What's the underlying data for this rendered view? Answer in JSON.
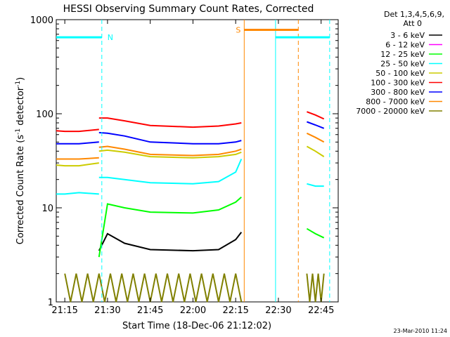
{
  "chart_data": {
    "type": "line",
    "title": "HESSI Observing Summary Count Rates, Corrected",
    "xlabel": "Start Time (18-Dec-06 21:12:02)",
    "ylabel_main": "Corrected Count Rate (s",
    "ylabel_exp1": "-1",
    "ylabel_mid": " detector",
    "ylabel_exp2": "-1",
    "ylabel_end": ")",
    "ylog": true,
    "xlim": [
      "21:12",
      "22:51"
    ],
    "ylim": [
      1,
      1000
    ],
    "x_ticks": [
      "21:15",
      "21:30",
      "21:45",
      "22:00",
      "22:15",
      "22:30",
      "22:45"
    ],
    "y_ticks": [
      {
        "value": 1,
        "label": "1"
      },
      {
        "value": 10,
        "label": "10"
      },
      {
        "value": 100,
        "label": "100"
      },
      {
        "value": 1000,
        "label": "1000"
      }
    ],
    "legend_header": [
      "Det 1,3,4,5,6,9,",
      "Att 0"
    ],
    "legend_placement": "right",
    "series": [
      {
        "name": "3 - 6 keV",
        "color": "#000000",
        "segments": [
          {
            "x": [
              "21:27",
              "21:30",
              "21:36",
              "21:45",
              "22:00",
              "22:09",
              "22:15",
              "22:17"
            ],
            "y": [
              3.5,
              5.3,
              4.2,
              3.6,
              3.5,
              3.6,
              4.6,
              5.5
            ]
          }
        ]
      },
      {
        "name": "6 - 12 keV",
        "color": "#ff00ff",
        "segments": [
          {
            "x": [
              "21:27",
              "21:27"
            ],
            "y": [
              1,
              1
            ]
          }
        ]
      },
      {
        "name": "12 - 25 keV",
        "color": "#00ff00",
        "segments": [
          {
            "x": [
              "21:27",
              "21:30",
              "21:36",
              "21:45",
              "22:00",
              "22:09",
              "22:15",
              "22:17"
            ],
            "y": [
              3.0,
              11.0,
              10.0,
              9.0,
              8.8,
              9.5,
              11.5,
              13.0
            ]
          },
          {
            "x": [
              "22:40",
              "22:43",
              "22:46"
            ],
            "y": [
              6.0,
              5.3,
              4.8
            ]
          }
        ]
      },
      {
        "name": "25 - 50 keV",
        "color": "#00ffff",
        "segments": [
          {
            "x": [
              "21:12",
              "21:15",
              "21:20",
              "21:27"
            ],
            "y": [
              14.0,
              14.0,
              14.5,
              14.0
            ]
          },
          {
            "x": [
              "21:27",
              "21:30",
              "21:36",
              "21:45",
              "22:00",
              "22:09",
              "22:15",
              "22:17"
            ],
            "y": [
              21.0,
              21.0,
              20.0,
              18.5,
              18.0,
              19.0,
              24.0,
              33.0
            ]
          },
          {
            "x": [
              "22:40",
              "22:43",
              "22:46"
            ],
            "y": [
              18.0,
              17.0,
              17.0
            ]
          }
        ]
      },
      {
        "name": "50 - 100 keV",
        "color": "#cccc00",
        "segments": [
          {
            "x": [
              "21:12",
              "21:15",
              "21:20",
              "21:27"
            ],
            "y": [
              28.5,
              28.0,
              28.0,
              30.0
            ]
          },
          {
            "x": [
              "21:27",
              "21:30",
              "21:36",
              "21:45",
              "22:00",
              "22:09",
              "22:15",
              "22:17"
            ],
            "y": [
              40.0,
              41.0,
              39.0,
              35.0,
              34.0,
              35.0,
              37.0,
              39.0
            ]
          },
          {
            "x": [
              "22:40",
              "22:43",
              "22:46"
            ],
            "y": [
              45.0,
              40.0,
              35.0
            ]
          }
        ]
      },
      {
        "name": "100 - 300 keV",
        "color": "#ff0000",
        "segments": [
          {
            "x": [
              "21:12",
              "21:15",
              "21:20",
              "21:27"
            ],
            "y": [
              66.0,
              65.0,
              65.0,
              68.0
            ]
          },
          {
            "x": [
              "21:27",
              "21:30",
              "21:36",
              "21:45",
              "22:00",
              "22:09",
              "22:15",
              "22:17"
            ],
            "y": [
              90.0,
              90.0,
              84.0,
              75.0,
              72.0,
              74.0,
              78.0,
              80.0
            ]
          },
          {
            "x": [
              "22:40",
              "22:43",
              "22:46"
            ],
            "y": [
              105.0,
              97.0,
              88.0
            ]
          }
        ]
      },
      {
        "name": "300 - 800 keV",
        "color": "#0000ff",
        "segments": [
          {
            "x": [
              "21:12",
              "21:15",
              "21:20",
              "21:27"
            ],
            "y": [
              48.0,
              48.0,
              48.0,
              50.0
            ]
          },
          {
            "x": [
              "21:27",
              "21:30",
              "21:36",
              "21:45",
              "22:00",
              "22:09",
              "22:15",
              "22:17"
            ],
            "y": [
              63.0,
              62.0,
              58.0,
              50.0,
              48.0,
              48.0,
              50.0,
              52.0
            ]
          },
          {
            "x": [
              "22:40",
              "22:43",
              "22:46"
            ],
            "y": [
              82.0,
              76.0,
              70.0
            ]
          }
        ]
      },
      {
        "name": "800 - 7000 keV",
        "color": "#ff8800",
        "segments": [
          {
            "x": [
              "21:12",
              "21:15",
              "21:20",
              "21:27"
            ],
            "y": [
              33.0,
              33.0,
              33.0,
              34.0
            ]
          },
          {
            "x": [
              "21:27",
              "21:30",
              "21:36",
              "21:45",
              "22:00",
              "22:09",
              "22:15",
              "22:17"
            ],
            "y": [
              44.0,
              45.0,
              42.0,
              37.0,
              36.0,
              37.0,
              40.0,
              42.0
            ]
          },
          {
            "x": [
              "22:40",
              "22:43",
              "22:46"
            ],
            "y": [
              62.0,
              56.0,
              50.0
            ]
          }
        ]
      },
      {
        "name": "7000 - 20000 keV",
        "color": "#808000",
        "segments": [
          {
            "x": [
              "21:15",
              "21:17",
              "21:19",
              "21:21",
              "21:23",
              "21:25",
              "21:27",
              "21:29",
              "21:31",
              "21:33",
              "21:35",
              "21:37",
              "21:39",
              "21:41",
              "21:43",
              "21:45",
              "21:47",
              "21:49",
              "21:51",
              "21:53",
              "21:55",
              "21:57",
              "21:59",
              "22:01",
              "22:03",
              "22:05",
              "22:07",
              "22:09",
              "22:11",
              "22:13",
              "22:15",
              "22:17"
            ],
            "y": [
              2,
              1,
              2,
              1,
              2,
              1,
              2,
              1,
              2,
              1,
              2,
              1,
              2,
              1,
              2,
              1,
              2,
              1,
              2,
              1,
              2,
              1,
              2,
              1,
              2,
              1,
              2,
              1,
              2,
              1,
              2,
              1
            ]
          },
          {
            "x": [
              "22:40",
              "22:41",
              "22:42",
              "22:43",
              "22:44",
              "22:45",
              "22:46"
            ],
            "y": [
              2,
              1,
              2,
              1,
              2,
              1,
              2
            ]
          }
        ]
      }
    ],
    "flags": [
      {
        "label": "N",
        "color": "#00ffff",
        "x_start": "21:12",
        "x_end": "21:28",
        "y": 650
      }
    ],
    "flags_2": [
      {
        "label": "S",
        "color": "#ff8800",
        "x_start": "22:18",
        "x_end": "22:37",
        "y": 780
      },
      {
        "label": "",
        "color": "#00ffff",
        "x_start": "22:29",
        "x_end": "22:48",
        "y": 650
      }
    ],
    "vlines": [
      {
        "x": "21:28",
        "color": "#00ffff",
        "dashed": true
      },
      {
        "x": "22:18",
        "color": "#ff8800",
        "dashed": false
      },
      {
        "x": "22:29",
        "color": "#00ffff",
        "dashed": false
      },
      {
        "x": "22:37",
        "color": "#ff8800",
        "dashed": true
      },
      {
        "x": "22:48",
        "color": "#00ffff",
        "dashed": true
      }
    ],
    "timestamp": "23-Mar-2010 11:24"
  }
}
